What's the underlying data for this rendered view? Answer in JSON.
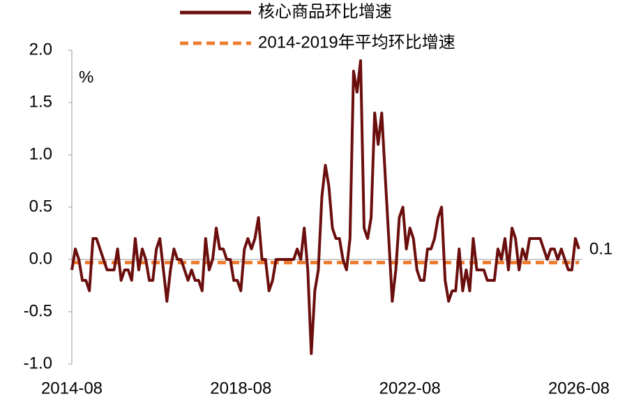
{
  "chart_data": {
    "type": "line",
    "y_label": "%",
    "annotation": "0.1",
    "categories": [
      "2014-08",
      null,
      null,
      null,
      null,
      null,
      null,
      null,
      null,
      null,
      null,
      null,
      null,
      null,
      null,
      null,
      null,
      null,
      null,
      null,
      null,
      null,
      null,
      null,
      null,
      null,
      null,
      null,
      null,
      null,
      null,
      null,
      null,
      null,
      null,
      null,
      null,
      null,
      null,
      null,
      null,
      null,
      null,
      null,
      null,
      null,
      null,
      null,
      "2018-08",
      null,
      null,
      null,
      null,
      null,
      null,
      null,
      null,
      null,
      null,
      null,
      null,
      null,
      null,
      null,
      null,
      null,
      null,
      null,
      null,
      null,
      null,
      null,
      null,
      null,
      null,
      null,
      null,
      null,
      null,
      null,
      null,
      null,
      null,
      null,
      null,
      null,
      null,
      null,
      null,
      null,
      null,
      null,
      null,
      null,
      null,
      null,
      "2022-08",
      null,
      null,
      null,
      null,
      null,
      null,
      null,
      null,
      null,
      null,
      null,
      null,
      null,
      null,
      null,
      null,
      null,
      null,
      null,
      null,
      null,
      null,
      null,
      null,
      null,
      null,
      null,
      null,
      null,
      null,
      null,
      null,
      null,
      null,
      null,
      null,
      null,
      null,
      null,
      null,
      null,
      null,
      null,
      null,
      null,
      null,
      null,
      "2026-08"
    ],
    "series": [
      {
        "name": "核心商品环比增速",
        "color": "#6b0e0e",
        "values": [
          -0.1,
          0.1,
          0,
          -0.2,
          -0.2,
          -0.3,
          0.2,
          0.2,
          0.1,
          0,
          -0.1,
          -0.1,
          -0.1,
          0.1,
          -0.2,
          -0.1,
          -0.1,
          -0.2,
          0.2,
          -0.1,
          0.1,
          0,
          -0.2,
          -0.2,
          0.1,
          0.2,
          -0.1,
          -0.4,
          -0.1,
          0.1,
          0,
          0,
          -0.1,
          -0.2,
          -0.1,
          -0.2,
          -0.2,
          -0.3,
          0.2,
          -0.1,
          0,
          0.3,
          0.1,
          0.1,
          0,
          0,
          -0.2,
          -0.2,
          -0.3,
          0.1,
          0.2,
          0.1,
          0.2,
          0.4,
          0,
          0,
          -0.3,
          -0.2,
          0,
          0,
          0,
          0,
          0,
          0,
          0.1,
          0,
          0.3,
          -0.1,
          -0.9,
          -0.3,
          -0.1,
          0.6,
          0.9,
          0.7,
          0.3,
          0.2,
          0.2,
          0,
          -0.1,
          0.2,
          1.8,
          1.6,
          1.9,
          0.3,
          0.2,
          0.4,
          1.4,
          1.1,
          1.4,
          0.8,
          0.2,
          -0.4,
          -0.1,
          0.4,
          0.5,
          0.1,
          0.3,
          0.2,
          -0.1,
          -0.2,
          -0.2,
          0.1,
          0.1,
          0.2,
          0.4,
          0.5,
          -0.2,
          -0.4,
          -0.3,
          -0.3,
          0.1,
          -0.3,
          -0.1,
          -0.3,
          0.2,
          -0.1,
          -0.1,
          -0.1,
          -0.2,
          -0.2,
          -0.2,
          0.1,
          0,
          0.2,
          -0.1,
          0.3,
          0.2,
          -0.1,
          0.1,
          0,
          0.2,
          0.2,
          0.2,
          0.2,
          0.1,
          0,
          0.1,
          0.1,
          0,
          0.1,
          0,
          -0.1,
          -0.1,
          0.2,
          0.1
        ]
      }
    ],
    "reference_line": {
      "name": "2014-2019年平均环比增速",
      "color": "#ed7d31",
      "value": -0.03
    },
    "ylim": [
      -1,
      2
    ],
    "yticks": [
      {
        "value": -1,
        "label": "-1.0"
      },
      -0.5,
      {
        "value": 0,
        "label": "0.0"
      },
      0.5,
      {
        "value": 1,
        "label": "1.0"
      },
      1.5,
      {
        "value": 2,
        "label": "2.0"
      }
    ]
  }
}
